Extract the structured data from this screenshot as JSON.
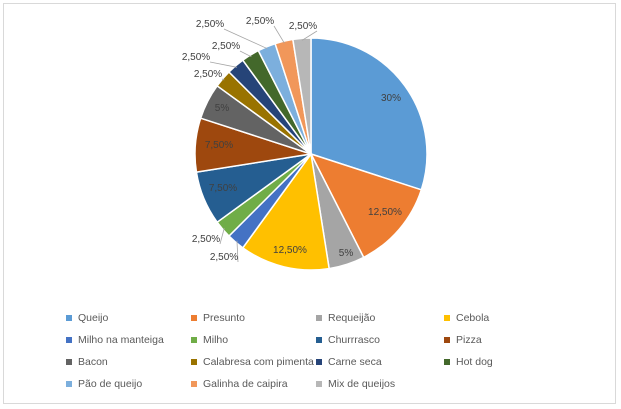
{
  "chart_data": {
    "type": "pie",
    "title": "",
    "legend_placement": "bottom",
    "slices": [
      {
        "name": "Queijo",
        "value": 30,
        "label": "30%",
        "color": "#5b9bd5"
      },
      {
        "name": "Presunto",
        "value": 12.5,
        "label": "12,50%",
        "color": "#ed7d31"
      },
      {
        "name": "Requeijão",
        "value": 5,
        "label": "5%",
        "color": "#a5a5a5"
      },
      {
        "name": "Cebola",
        "value": 12.5,
        "label": "12,50%",
        "color": "#ffc000"
      },
      {
        "name": "Milho na manteiga",
        "value": 2.5,
        "label": "2,50%",
        "color": "#4472c4"
      },
      {
        "name": "Milho",
        "value": 2.5,
        "label": "2,50%",
        "color": "#70ad47"
      },
      {
        "name": "Churrrasco",
        "value": 7.5,
        "label": "7,50%",
        "color": "#255e91"
      },
      {
        "name": "Pizza",
        "value": 7.5,
        "label": "7,50%",
        "color": "#9e480e"
      },
      {
        "name": "Bacon",
        "value": 5,
        "label": "5%",
        "color": "#636363"
      },
      {
        "name": "Calabresa com pimenta",
        "value": 2.5,
        "label": "2,50%",
        "color": "#997300"
      },
      {
        "name": "Carne seca",
        "value": 2.5,
        "label": "2,50%",
        "color": "#264478"
      },
      {
        "name": "Hot dog",
        "value": 2.5,
        "label": "2,50%",
        "color": "#43682b"
      },
      {
        "name": "Pão de queijo",
        "value": 2.5,
        "label": "2,50%",
        "color": "#7cafdd"
      },
      {
        "name": "Galinha de caipira",
        "value": 2.5,
        "label": "2,50%",
        "color": "#f1975a"
      },
      {
        "name": "Mix de queijos",
        "value": 2.5,
        "label": "2,50%",
        "color": "#b7b7b7"
      }
    ]
  }
}
